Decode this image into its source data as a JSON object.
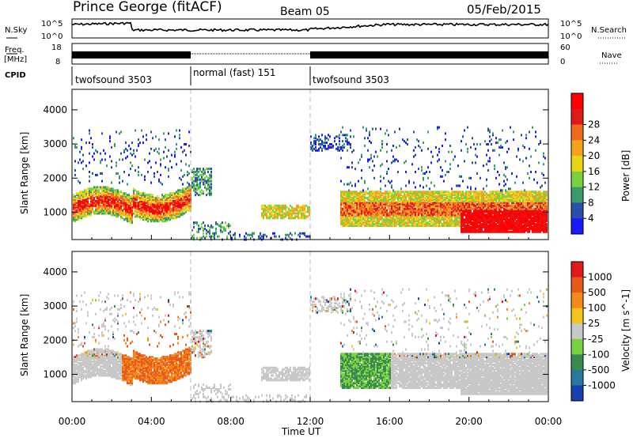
{
  "header": {
    "station": "Prince George (fitACF)",
    "beam": "Beam 05",
    "date": "05/Feb/2015"
  },
  "noise_panel": {
    "left_label": "N.Sky",
    "left_ticks": [
      "10^5",
      "10^0"
    ],
    "right_ticks": [
      "10^5",
      "10^0"
    ],
    "right_label": "N.Search"
  },
  "freq_panel": {
    "left_label_top": "Freq.",
    "left_label_bottom": "[MHz]",
    "left_ticks": [
      "18",
      "8"
    ],
    "right_ticks": [
      "60",
      "0"
    ],
    "right_label": "Nave"
  },
  "cpid": {
    "label": "CPID",
    "segments": [
      {
        "name": "twofsound 3503",
        "start_hr": 0,
        "end_hr": 6
      },
      {
        "name": "normal (fast) 151",
        "start_hr": 6,
        "end_hr": 12
      },
      {
        "name": "twofsound 3503",
        "start_hr": 12,
        "end_hr": 24
      }
    ]
  },
  "chart_data": [
    {
      "type": "heatmap",
      "panel": "power",
      "ylabel": "Slant Range [km]",
      "yticks": [
        "1000",
        "2000",
        "3000",
        "4000"
      ],
      "ylim": [
        200,
        4600
      ],
      "xlim_hr": [
        0,
        24
      ],
      "colorbar_label": "Power [dB]",
      "colorbar_ticks": [
        "4",
        "8",
        "12",
        "16",
        "20",
        "24",
        "28"
      ],
      "colors": [
        "#1a1aff",
        "#2a4fa8",
        "#3a9a6e",
        "#7ad13f",
        "#e8d51a",
        "#f5a31e",
        "#f26a1c",
        "#e01a1a",
        "#ff0000"
      ]
    },
    {
      "type": "heatmap",
      "panel": "velocity",
      "ylabel": "Slant Range [km]",
      "yticks": [
        "1000",
        "2000",
        "3000",
        "4000"
      ],
      "ylim": [
        200,
        4600
      ],
      "xlim_hr": [
        0,
        24
      ],
      "colorbar_label": "Velocity [m s^-1]",
      "colorbar_ticks": [
        "1000",
        "500",
        "100",
        "25",
        "-25",
        "-100",
        "-500",
        "-1000"
      ],
      "colors": [
        "#1a3fb0",
        "#2a77a0",
        "#3a8a50",
        "#7ad13f",
        "#c8c8c8",
        "#f5c21e",
        "#f28a1c",
        "#e85a1a",
        "#e01a1a"
      ]
    }
  ],
  "xaxis": {
    "ticks": [
      "00:00",
      "04:00",
      "08:00",
      "12:00",
      "16:00",
      "20:00",
      "00:00"
    ],
    "label": "Time UT"
  }
}
